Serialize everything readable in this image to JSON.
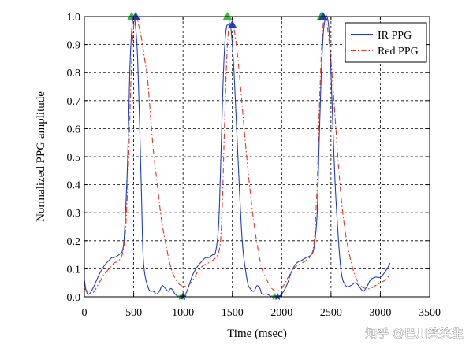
{
  "chart_data": {
    "type": "line",
    "title": "",
    "xlabel": "Time (msec)",
    "ylabel": "Normalized PPG amplitude",
    "xlim": [
      0,
      3500
    ],
    "ylim": [
      0,
      1.0
    ],
    "xticks": [
      0,
      500,
      1000,
      1500,
      2000,
      2500,
      3000,
      3500
    ],
    "yticks": [
      0.0,
      0.1,
      0.2,
      0.3,
      0.4,
      0.5,
      0.6,
      0.7,
      0.8,
      0.9,
      1.0
    ],
    "xtick_labels": [
      "0",
      "500",
      "1000",
      "1500",
      "2000",
      "2500",
      "3000",
      "3500"
    ],
    "ytick_labels": [
      "0.0",
      "0.1",
      "0.2",
      "0.3",
      "0.4",
      "0.5",
      "0.6",
      "0.7",
      "0.8",
      "0.9",
      "1.0"
    ],
    "grid": true,
    "legend_position": "top-right",
    "series": [
      {
        "name": "IR PPG",
        "color": "#1f3fbf",
        "style": "solid",
        "x": [
          0,
          20,
          50,
          100,
          150,
          200,
          250,
          280,
          300,
          350,
          390,
          410,
          440,
          460,
          480,
          500,
          520,
          540,
          560,
          580,
          600,
          650,
          700,
          730,
          760,
          790,
          820,
          850,
          880,
          920,
          960,
          1000,
          1020,
          1050,
          1100,
          1150,
          1200,
          1230,
          1260,
          1300,
          1330,
          1360,
          1380,
          1400,
          1420,
          1440,
          1460,
          1480,
          1500,
          1520,
          1550,
          1600,
          1650,
          1680,
          1720,
          1750,
          1780,
          1800,
          1850,
          1900,
          1940,
          1960,
          2000,
          2050,
          2100,
          2150,
          2200,
          2250,
          2300,
          2330,
          2360,
          2380,
          2400,
          2420,
          2440,
          2460,
          2480,
          2500,
          2520,
          2550,
          2600,
          2650,
          2700,
          2750,
          2800,
          2830,
          2870,
          2900,
          2950,
          3000,
          3050,
          3100
        ],
        "values": [
          0.06,
          0.02,
          0.01,
          0.04,
          0.08,
          0.11,
          0.13,
          0.14,
          0.14,
          0.15,
          0.17,
          0.25,
          0.5,
          0.8,
          0.95,
          1.0,
          0.96,
          0.85,
          0.62,
          0.35,
          0.12,
          0.03,
          0.02,
          0.01,
          0.02,
          0.04,
          0.03,
          0.02,
          0.03,
          0.01,
          0.0,
          0.0,
          0.005,
          0.03,
          0.08,
          0.11,
          0.13,
          0.14,
          0.14,
          0.15,
          0.16,
          0.25,
          0.45,
          0.7,
          0.88,
          0.96,
          0.97,
          0.97,
          0.9,
          0.78,
          0.55,
          0.2,
          0.06,
          0.03,
          0.02,
          0.04,
          0.03,
          0.01,
          0.01,
          0.0,
          0.0,
          0.0,
          0.01,
          0.04,
          0.09,
          0.12,
          0.13,
          0.14,
          0.15,
          0.18,
          0.3,
          0.55,
          0.78,
          0.93,
          0.99,
          1.0,
          0.95,
          0.8,
          0.6,
          0.35,
          0.1,
          0.04,
          0.04,
          0.05,
          0.03,
          0.02,
          0.04,
          0.06,
          0.07,
          0.07,
          0.09,
          0.12
        ]
      },
      {
        "name": "Red PPG",
        "color": "#d63a2a",
        "style": "dash-dot",
        "x": [
          0,
          30,
          60,
          100,
          150,
          200,
          250,
          300,
          350,
          390,
          420,
          450,
          470,
          490,
          510,
          530,
          550,
          580,
          610,
          640,
          670,
          700,
          740,
          780,
          830,
          880,
          930,
          980,
          1050,
          1100,
          1150,
          1200,
          1250,
          1300,
          1350,
          1380,
          1400,
          1420,
          1440,
          1460,
          1480,
          1510,
          1540,
          1570,
          1600,
          1640,
          1680,
          1720,
          1760,
          1800,
          1850,
          1900,
          1950,
          2000,
          2050,
          2100,
          2150,
          2200,
          2250,
          2300,
          2330,
          2360,
          2380,
          2400,
          2420,
          2440,
          2460,
          2490,
          2520,
          2550,
          2580,
          2610,
          2650,
          2700,
          2750,
          2800,
          2850,
          2900,
          2950,
          3000,
          3050,
          3100
        ],
        "values": [
          0.03,
          0.02,
          0.01,
          0.02,
          0.05,
          0.08,
          0.1,
          0.12,
          0.13,
          0.16,
          0.25,
          0.5,
          0.75,
          0.92,
          0.99,
          1.0,
          0.97,
          0.92,
          0.85,
          0.78,
          0.65,
          0.52,
          0.4,
          0.28,
          0.18,
          0.1,
          0.06,
          0.04,
          0.04,
          0.06,
          0.09,
          0.11,
          0.12,
          0.13,
          0.15,
          0.2,
          0.35,
          0.6,
          0.82,
          0.95,
          1.0,
          0.97,
          0.9,
          0.8,
          0.68,
          0.52,
          0.38,
          0.26,
          0.17,
          0.1,
          0.06,
          0.03,
          0.02,
          0.03,
          0.06,
          0.09,
          0.11,
          0.12,
          0.13,
          0.15,
          0.2,
          0.4,
          0.65,
          0.85,
          0.97,
          1.0,
          0.97,
          0.88,
          0.75,
          0.6,
          0.45,
          0.33,
          0.22,
          0.13,
          0.07,
          0.04,
          0.03,
          0.03,
          0.04,
          0.05,
          0.06,
          0.08
        ]
      }
    ],
    "markers": [
      {
        "name": "green-peak-triangle",
        "shape": "triangle",
        "color": "#22cc22",
        "points": [
          [
            480,
            1.0
          ],
          [
            1450,
            1.0
          ],
          [
            2400,
            1.0
          ]
        ]
      },
      {
        "name": "blue-peak-triangle",
        "shape": "triangle",
        "color": "#1f3fbf",
        "points": [
          [
            520,
            1.0
          ],
          [
            1500,
            0.97
          ],
          [
            2420,
            1.0
          ]
        ]
      },
      {
        "name": "green-valley-star",
        "shape": "star",
        "color": "#22cc22",
        "points": [
          [
            980,
            0.0
          ],
          [
            1930,
            0.0
          ]
        ]
      },
      {
        "name": "blue-valley-star",
        "shape": "star",
        "color": "#1f3fbf",
        "points": [
          [
            1000,
            0.0
          ],
          [
            1960,
            0.0
          ]
        ]
      }
    ]
  },
  "watermark": "知乎 @巴川笑笑生"
}
